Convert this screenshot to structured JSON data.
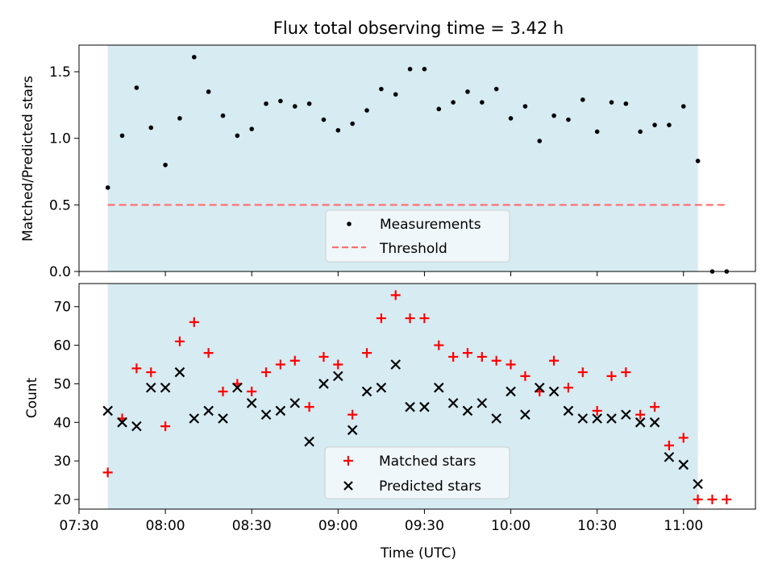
{
  "chart_data": [
    {
      "type": "scatter",
      "title": "Flux total observing time = 3.42 h",
      "xlabel": "",
      "ylabel": "Matched/Predicted stars",
      "ylim": [
        0,
        1.7
      ],
      "yticks": [
        "0.0",
        "0.5",
        "1.0",
        "1.5"
      ],
      "shaded_span": [
        "07:40",
        "11:05"
      ],
      "shade_color": "#add8e6",
      "threshold": {
        "name": "Threshold",
        "value": 0.5,
        "color": "#ff7070",
        "xrange": [
          "07:40",
          "11:15"
        ]
      },
      "series": [
        {
          "name": "Measurements",
          "marker": "dot",
          "color": "#000000",
          "x": [
            "07:40",
            "07:45",
            "07:50",
            "07:55",
            "08:00",
            "08:05",
            "08:10",
            "08:15",
            "08:20",
            "08:25",
            "08:30",
            "08:35",
            "08:40",
            "08:45",
            "08:50",
            "08:55",
            "09:00",
            "09:05",
            "09:10",
            "09:15",
            "09:20",
            "09:25",
            "09:30",
            "09:35",
            "09:40",
            "09:45",
            "09:50",
            "09:55",
            "10:00",
            "10:05",
            "10:10",
            "10:15",
            "10:20",
            "10:25",
            "10:30",
            "10:35",
            "10:40",
            "10:45",
            "10:50",
            "10:55",
            "11:00",
            "11:05",
            "11:10",
            "11:15"
          ],
          "values": [
            0.63,
            1.02,
            1.38,
            1.08,
            0.8,
            1.15,
            1.61,
            1.35,
            1.17,
            1.02,
            1.07,
            1.26,
            1.28,
            1.24,
            1.26,
            1.14,
            1.06,
            1.11,
            1.21,
            1.37,
            1.33,
            1.52,
            1.52,
            1.22,
            1.27,
            1.35,
            1.27,
            1.37,
            1.15,
            1.24,
            0.98,
            1.17,
            1.14,
            1.29,
            1.05,
            1.27,
            1.26,
            1.05,
            1.1,
            1.1,
            1.24,
            0.83,
            0.0,
            0.0
          ]
        }
      ],
      "legend": {
        "position": "lower center"
      }
    },
    {
      "type": "scatter",
      "title": "",
      "xlabel": "Time (UTC)",
      "ylabel": "Count",
      "ylim": [
        17.5,
        76
      ],
      "yticks": [
        "20",
        "30",
        "40",
        "50",
        "60",
        "70"
      ],
      "xlim": [
        "07:30",
        "11:25"
      ],
      "xticks": [
        "07:30",
        "08:00",
        "08:30",
        "09:00",
        "09:30",
        "10:00",
        "10:30",
        "11:00"
      ],
      "shaded_span": [
        "07:40",
        "11:05"
      ],
      "shade_color": "#add8e6",
      "series": [
        {
          "name": "Matched stars",
          "marker": "plus",
          "color": "#ff0000",
          "x": [
            "07:40",
            "07:45",
            "07:50",
            "07:55",
            "08:00",
            "08:05",
            "08:10",
            "08:15",
            "08:20",
            "08:25",
            "08:30",
            "08:35",
            "08:40",
            "08:45",
            "08:50",
            "08:55",
            "09:00",
            "09:05",
            "09:10",
            "09:15",
            "09:20",
            "09:25",
            "09:30",
            "09:35",
            "09:40",
            "09:45",
            "09:50",
            "09:55",
            "10:00",
            "10:05",
            "10:10",
            "10:15",
            "10:20",
            "10:25",
            "10:30",
            "10:35",
            "10:40",
            "10:45",
            "10:50",
            "10:55",
            "11:00",
            "11:05",
            "11:10",
            "11:15"
          ],
          "values": [
            27,
            41,
            54,
            53,
            39,
            61,
            66,
            58,
            48,
            50,
            48,
            53,
            55,
            56,
            44,
            57,
            55,
            42,
            58,
            67,
            73,
            67,
            67,
            60,
            57,
            58,
            57,
            56,
            55,
            52,
            48,
            56,
            49,
            53,
            43,
            52,
            53,
            42,
            44,
            34,
            36,
            20,
            20,
            20
          ]
        },
        {
          "name": "Predicted stars",
          "marker": "x",
          "color": "#000000",
          "x": [
            "07:40",
            "07:45",
            "07:50",
            "07:55",
            "08:00",
            "08:05",
            "08:10",
            "08:15",
            "08:20",
            "08:25",
            "08:30",
            "08:35",
            "08:40",
            "08:45",
            "08:50",
            "08:55",
            "09:00",
            "09:05",
            "09:10",
            "09:15",
            "09:20",
            "09:25",
            "09:30",
            "09:35",
            "09:40",
            "09:45",
            "09:50",
            "09:55",
            "10:00",
            "10:05",
            "10:10",
            "10:15",
            "10:20",
            "10:25",
            "10:30",
            "10:35",
            "10:40",
            "10:45",
            "10:50",
            "10:55",
            "11:00",
            "11:05"
          ],
          "values": [
            43,
            40,
            39,
            49,
            49,
            53,
            41,
            43,
            41,
            49,
            45,
            42,
            43,
            45,
            35,
            50,
            52,
            38,
            48,
            49,
            55,
            44,
            44,
            49,
            45,
            43,
            45,
            41,
            48,
            42,
            49,
            48,
            43,
            41,
            41,
            41,
            42,
            40,
            40,
            31,
            29,
            24
          ]
        }
      ],
      "legend": {
        "position": "lower center"
      }
    }
  ]
}
